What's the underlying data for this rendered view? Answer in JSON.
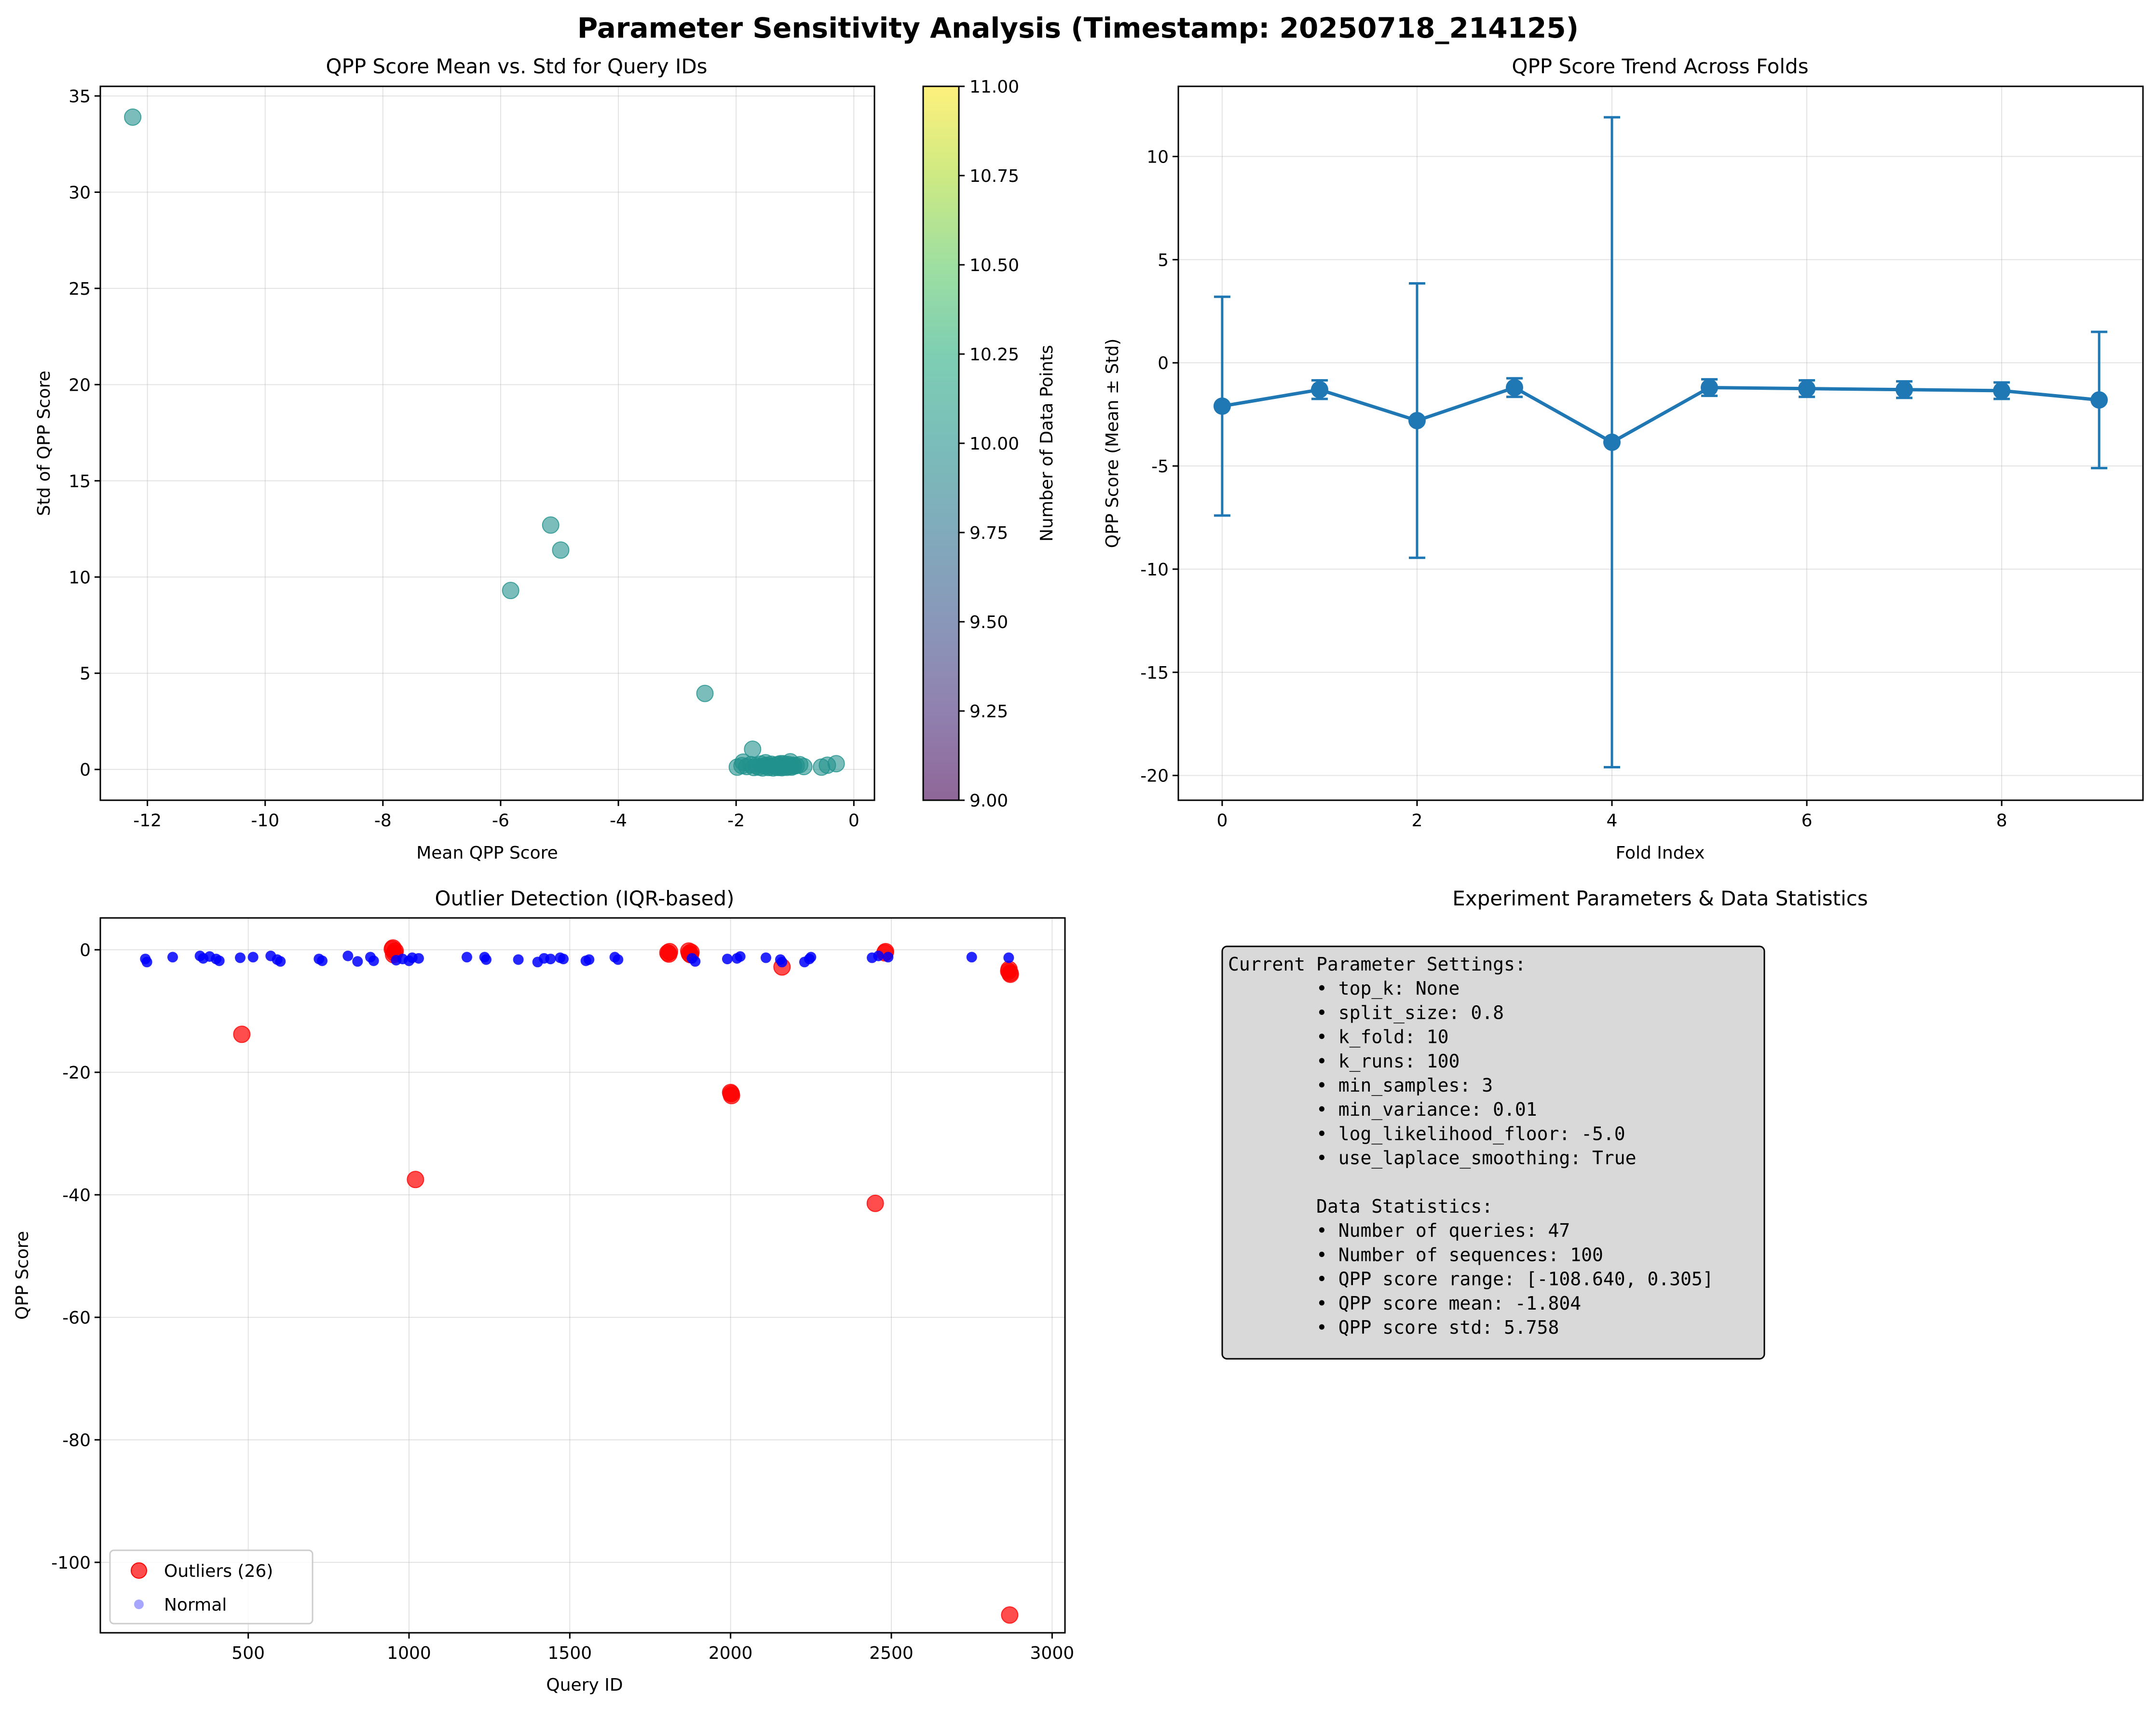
{
  "suptitle": "Parameter Sensitivity Analysis (Timestamp: 20250718_214125)",
  "chart_data": [
    {
      "id": "scatter_mean_std",
      "type": "scatter",
      "title": "QPP Score Mean vs. Std for Query IDs",
      "xlabel": "Mean QPP Score",
      "ylabel": "Std of QPP Score",
      "xlim": [
        -12.8,
        0.35
      ],
      "ylim": [
        -1.6,
        35.5
      ],
      "xticks": [
        -12,
        -10,
        -8,
        -6,
        -4,
        -2,
        0
      ],
      "yticks": [
        0,
        5,
        10,
        15,
        20,
        25,
        30,
        35
      ],
      "grid": true,
      "point_color": "#21918c",
      "colorbar": {
        "label": "Number of Data Points",
        "range": [
          9.0,
          11.0
        ],
        "ticks": [
          "9.00",
          "9.25",
          "9.50",
          "9.75",
          "10.00",
          "10.25",
          "10.50",
          "10.75",
          "11.00"
        ],
        "colormap": "viridis"
      },
      "points": [
        [
          -12.25,
          33.9
        ],
        [
          -5.15,
          12.7
        ],
        [
          -4.98,
          11.4
        ],
        [
          -5.83,
          9.3
        ],
        [
          -2.53,
          3.95
        ],
        [
          -1.72,
          1.05
        ],
        [
          -1.98,
          0.12
        ],
        [
          -1.88,
          0.38
        ],
        [
          -1.82,
          0.15
        ],
        [
          -1.75,
          0.25
        ],
        [
          -1.7,
          0.1
        ],
        [
          -1.66,
          0.2
        ],
        [
          -1.62,
          0.12
        ],
        [
          -1.58,
          0.28
        ],
        [
          -1.55,
          0.08
        ],
        [
          -1.52,
          0.18
        ],
        [
          -1.48,
          0.22
        ],
        [
          -1.45,
          0.1
        ],
        [
          -1.42,
          0.15
        ],
        [
          -1.4,
          0.27
        ],
        [
          -1.37,
          0.08
        ],
        [
          -1.35,
          0.2
        ],
        [
          -1.32,
          0.13
        ],
        [
          -1.3,
          0.25
        ],
        [
          -1.28,
          0.1
        ],
        [
          -1.26,
          0.17
        ],
        [
          -1.24,
          0.22
        ],
        [
          -1.22,
          0.09
        ],
        [
          -1.2,
          0.3
        ],
        [
          -1.18,
          0.14
        ],
        [
          -1.16,
          0.2
        ],
        [
          -1.14,
          0.11
        ],
        [
          -1.12,
          0.26
        ],
        [
          -1.1,
          0.16
        ],
        [
          -1.08,
          0.4
        ],
        [
          -1.06,
          0.12
        ],
        [
          -1.04,
          0.22
        ],
        [
          -1.02,
          0.18
        ],
        [
          -0.98,
          0.2
        ],
        [
          -0.92,
          0.25
        ],
        [
          -0.85,
          0.15
        ],
        [
          -0.55,
          0.12
        ],
        [
          -0.45,
          0.22
        ],
        [
          -0.3,
          0.3
        ],
        [
          -1.5,
          0.35
        ],
        [
          -1.25,
          0.3
        ],
        [
          -1.9,
          0.2
        ]
      ]
    },
    {
      "id": "fold_trend",
      "type": "line",
      "title": "QPP Score Trend Across Folds",
      "xlabel": "Fold Index",
      "ylabel": "QPP Score (Mean ± Std)",
      "xlim": [
        -0.45,
        9.45
      ],
      "ylim": [
        -21.2,
        13.4
      ],
      "xticks": [
        0,
        2,
        4,
        6,
        8
      ],
      "yticks": [
        10,
        5,
        0,
        -5,
        -10,
        -15,
        -20
      ],
      "grid": true,
      "color": "#1f77b4",
      "x": [
        0,
        1,
        2,
        3,
        4,
        5,
        6,
        7,
        8,
        9
      ],
      "mean": [
        -2.1,
        -1.3,
        -2.8,
        -1.2,
        -3.85,
        -1.2,
        -1.25,
        -1.3,
        -1.35,
        -1.8
      ],
      "std": [
        5.3,
        0.45,
        6.65,
        0.45,
        15.75,
        0.4,
        0.4,
        0.4,
        0.4,
        3.3
      ]
    },
    {
      "id": "outliers",
      "type": "scatter",
      "title": "Outlier Detection (IQR-based)",
      "xlabel": "Query ID",
      "ylabel": "QPP Score",
      "xlim": [
        40,
        3040
      ],
      "ylim": [
        -111.5,
        5.2
      ],
      "xticks": [
        500,
        1000,
        1500,
        2000,
        2500,
        3000
      ],
      "yticks": [
        0,
        -20,
        -40,
        -60,
        -80,
        -100
      ],
      "grid": true,
      "legend_position": "lower-left",
      "series": [
        {
          "name": "Outliers (26)",
          "color": "#ff0000",
          "points": [
            [
              480,
              -13.8
            ],
            [
              950,
              0.3
            ],
            [
              955,
              -0.5
            ],
            [
              1020,
              -37.5
            ],
            [
              1805,
              -0.5
            ],
            [
              1810,
              -0.3
            ],
            [
              1870,
              -0.2
            ],
            [
              1875,
              -0.8
            ],
            [
              2000,
              -23.3
            ],
            [
              2003,
              -23.8
            ],
            [
              2160,
              -2.8
            ],
            [
              2450,
              -41.4
            ],
            [
              2480,
              -0.5
            ],
            [
              2865,
              -3.5
            ],
            [
              2870,
              -4.0
            ],
            [
              2868,
              -108.6
            ],
            [
              952,
              -0.8
            ],
            [
              1872,
              -0.6
            ],
            [
              2866,
              -3.2
            ],
            [
              2002,
              -23.5
            ],
            [
              1808,
              -0.7
            ],
            [
              2482,
              -0.3
            ],
            [
              948,
              0.1
            ],
            [
              2869,
              -3.8
            ],
            [
              1877,
              -0.4
            ],
            [
              957,
              -0.2
            ]
          ]
        },
        {
          "name": "Normal",
          "color": "#0000ff",
          "points": [
            [
              180,
              -1.5
            ],
            [
              185,
              -2.0
            ],
            [
              265,
              -1.2
            ],
            [
              350,
              -1.0
            ],
            [
              360,
              -1.4
            ],
            [
              380,
              -1.1
            ],
            [
              400,
              -1.5
            ],
            [
              410,
              -1.8
            ],
            [
              475,
              -1.3
            ],
            [
              515,
              -1.2
            ],
            [
              570,
              -1.0
            ],
            [
              590,
              -1.6
            ],
            [
              600,
              -1.9
            ],
            [
              720,
              -1.5
            ],
            [
              730,
              -1.8
            ],
            [
              810,
              -1.0
            ],
            [
              840,
              -1.9
            ],
            [
              880,
              -1.2
            ],
            [
              890,
              -1.8
            ],
            [
              960,
              -1.7
            ],
            [
              980,
              -1.5
            ],
            [
              1000,
              -1.8
            ],
            [
              1010,
              -1.3
            ],
            [
              1030,
              -1.4
            ],
            [
              1180,
              -1.2
            ],
            [
              1235,
              -1.2
            ],
            [
              1240,
              -1.6
            ],
            [
              1340,
              -1.6
            ],
            [
              1400,
              -2.0
            ],
            [
              1420,
              -1.4
            ],
            [
              1440,
              -1.5
            ],
            [
              1470,
              -1.3
            ],
            [
              1480,
              -1.5
            ],
            [
              1550,
              -1.8
            ],
            [
              1560,
              -1.6
            ],
            [
              1640,
              -1.2
            ],
            [
              1650,
              -1.6
            ],
            [
              1880,
              -1.4
            ],
            [
              1890,
              -1.9
            ],
            [
              1990,
              -1.5
            ],
            [
              2020,
              -1.4
            ],
            [
              2030,
              -1.1
            ],
            [
              2110,
              -1.3
            ],
            [
              2155,
              -1.6
            ],
            [
              2160,
              -2.0
            ],
            [
              2230,
              -2.0
            ],
            [
              2245,
              -1.5
            ],
            [
              2250,
              -1.2
            ],
            [
              2440,
              -1.3
            ],
            [
              2460,
              -1.0
            ],
            [
              2490,
              -1.2
            ],
            [
              2750,
              -1.2
            ],
            [
              2865,
              -1.3
            ]
          ]
        }
      ]
    }
  ],
  "stats_panel": {
    "title": "Experiment Parameters & Data Statistics",
    "lines": [
      "Current Parameter Settings:",
      "        • top_k: None",
      "        • split_size: 0.8",
      "        • k_fold: 10",
      "        • k_runs: 100",
      "        • min_samples: 3",
      "        • min_variance: 0.01",
      "        • log_likelihood_floor: -5.0",
      "        • use_laplace_smoothing: True",
      "",
      "        Data Statistics:",
      "        • Number of queries: 47",
      "        • Number of sequences: 100",
      "        • QPP score range: [-108.640, 0.305]",
      "        • QPP score mean: -1.804",
      "        • QPP score std: 5.758"
    ]
  }
}
